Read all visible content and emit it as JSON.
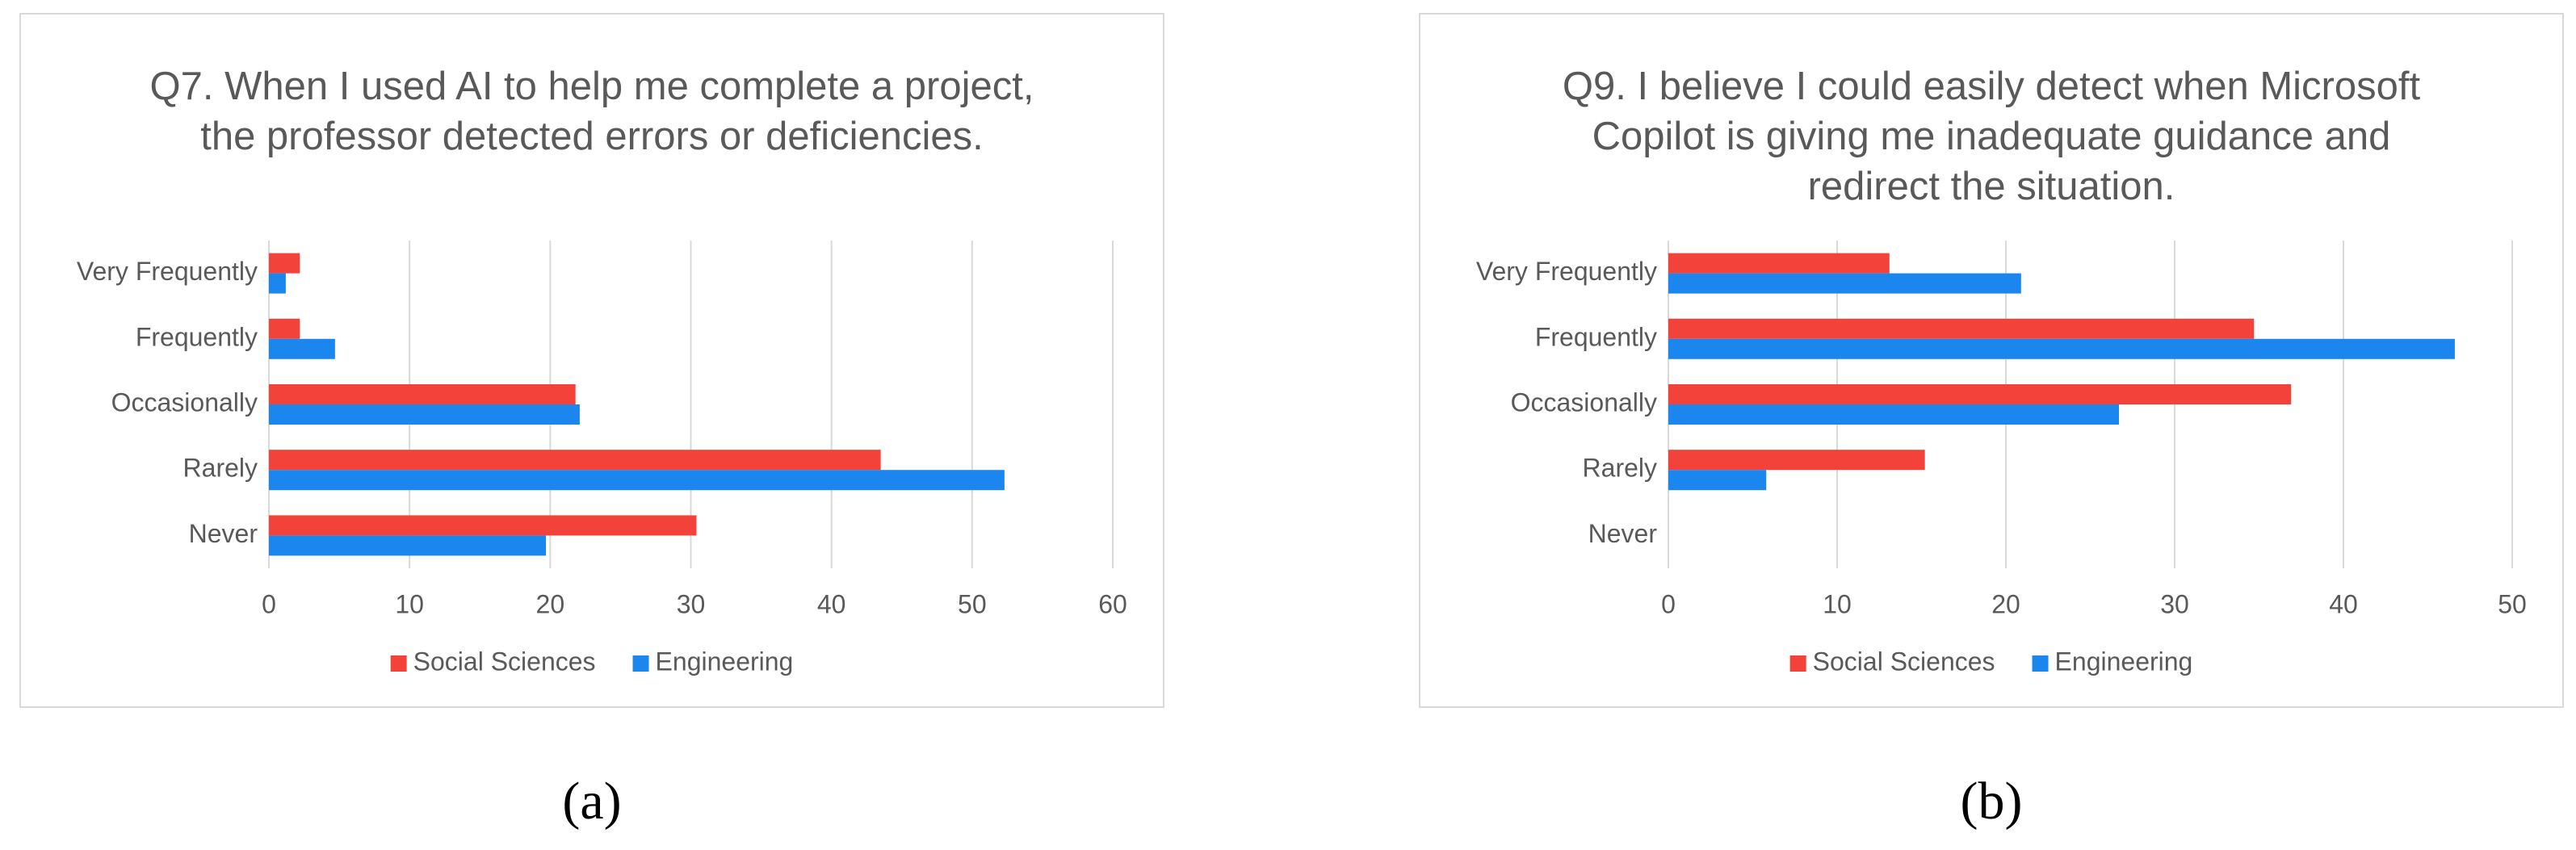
{
  "chart_data": [
    {
      "type": "bar",
      "orientation": "horizontal",
      "title": "Q7. When I used AI to help me complete a project, the professor detected errors or deficiencies.",
      "categories": [
        "Very Frequently",
        "Frequently",
        "Occasionally",
        "Rarely",
        "Never"
      ],
      "series": [
        {
          "name": "Social Sciences",
          "color": "#f2423a",
          "values": [
            2.2,
            2.2,
            21.8,
            43.5,
            30.4
          ]
        },
        {
          "name": "Engineering",
          "color": "#1a86ee",
          "values": [
            1.2,
            4.7,
            22.1,
            52.3,
            19.7
          ]
        }
      ],
      "xlim": [
        0,
        60
      ],
      "xticks": [
        0,
        10,
        20,
        30,
        40,
        50,
        60
      ],
      "grid": true,
      "legend": "bottom",
      "caption": "(a)"
    },
    {
      "type": "bar",
      "orientation": "horizontal",
      "title": "Q9. I believe I could easily detect when Microsoft Copilot is giving me inadequate guidance and redirect the situation.",
      "categories": [
        "Very Frequently",
        "Frequently",
        "Occasionally",
        "Rarely",
        "Never"
      ],
      "series": [
        {
          "name": "Social Sciences",
          "color": "#f2423a",
          "values": [
            13.1,
            34.7,
            36.9,
            15.2,
            0
          ]
        },
        {
          "name": "Engineering",
          "color": "#1a86ee",
          "values": [
            20.9,
            46.6,
            26.7,
            5.8,
            0
          ]
        }
      ],
      "xlim": [
        0,
        50
      ],
      "xticks": [
        0,
        10,
        20,
        30,
        40,
        50
      ],
      "grid": true,
      "legend": "bottom",
      "caption": "(b)"
    }
  ]
}
